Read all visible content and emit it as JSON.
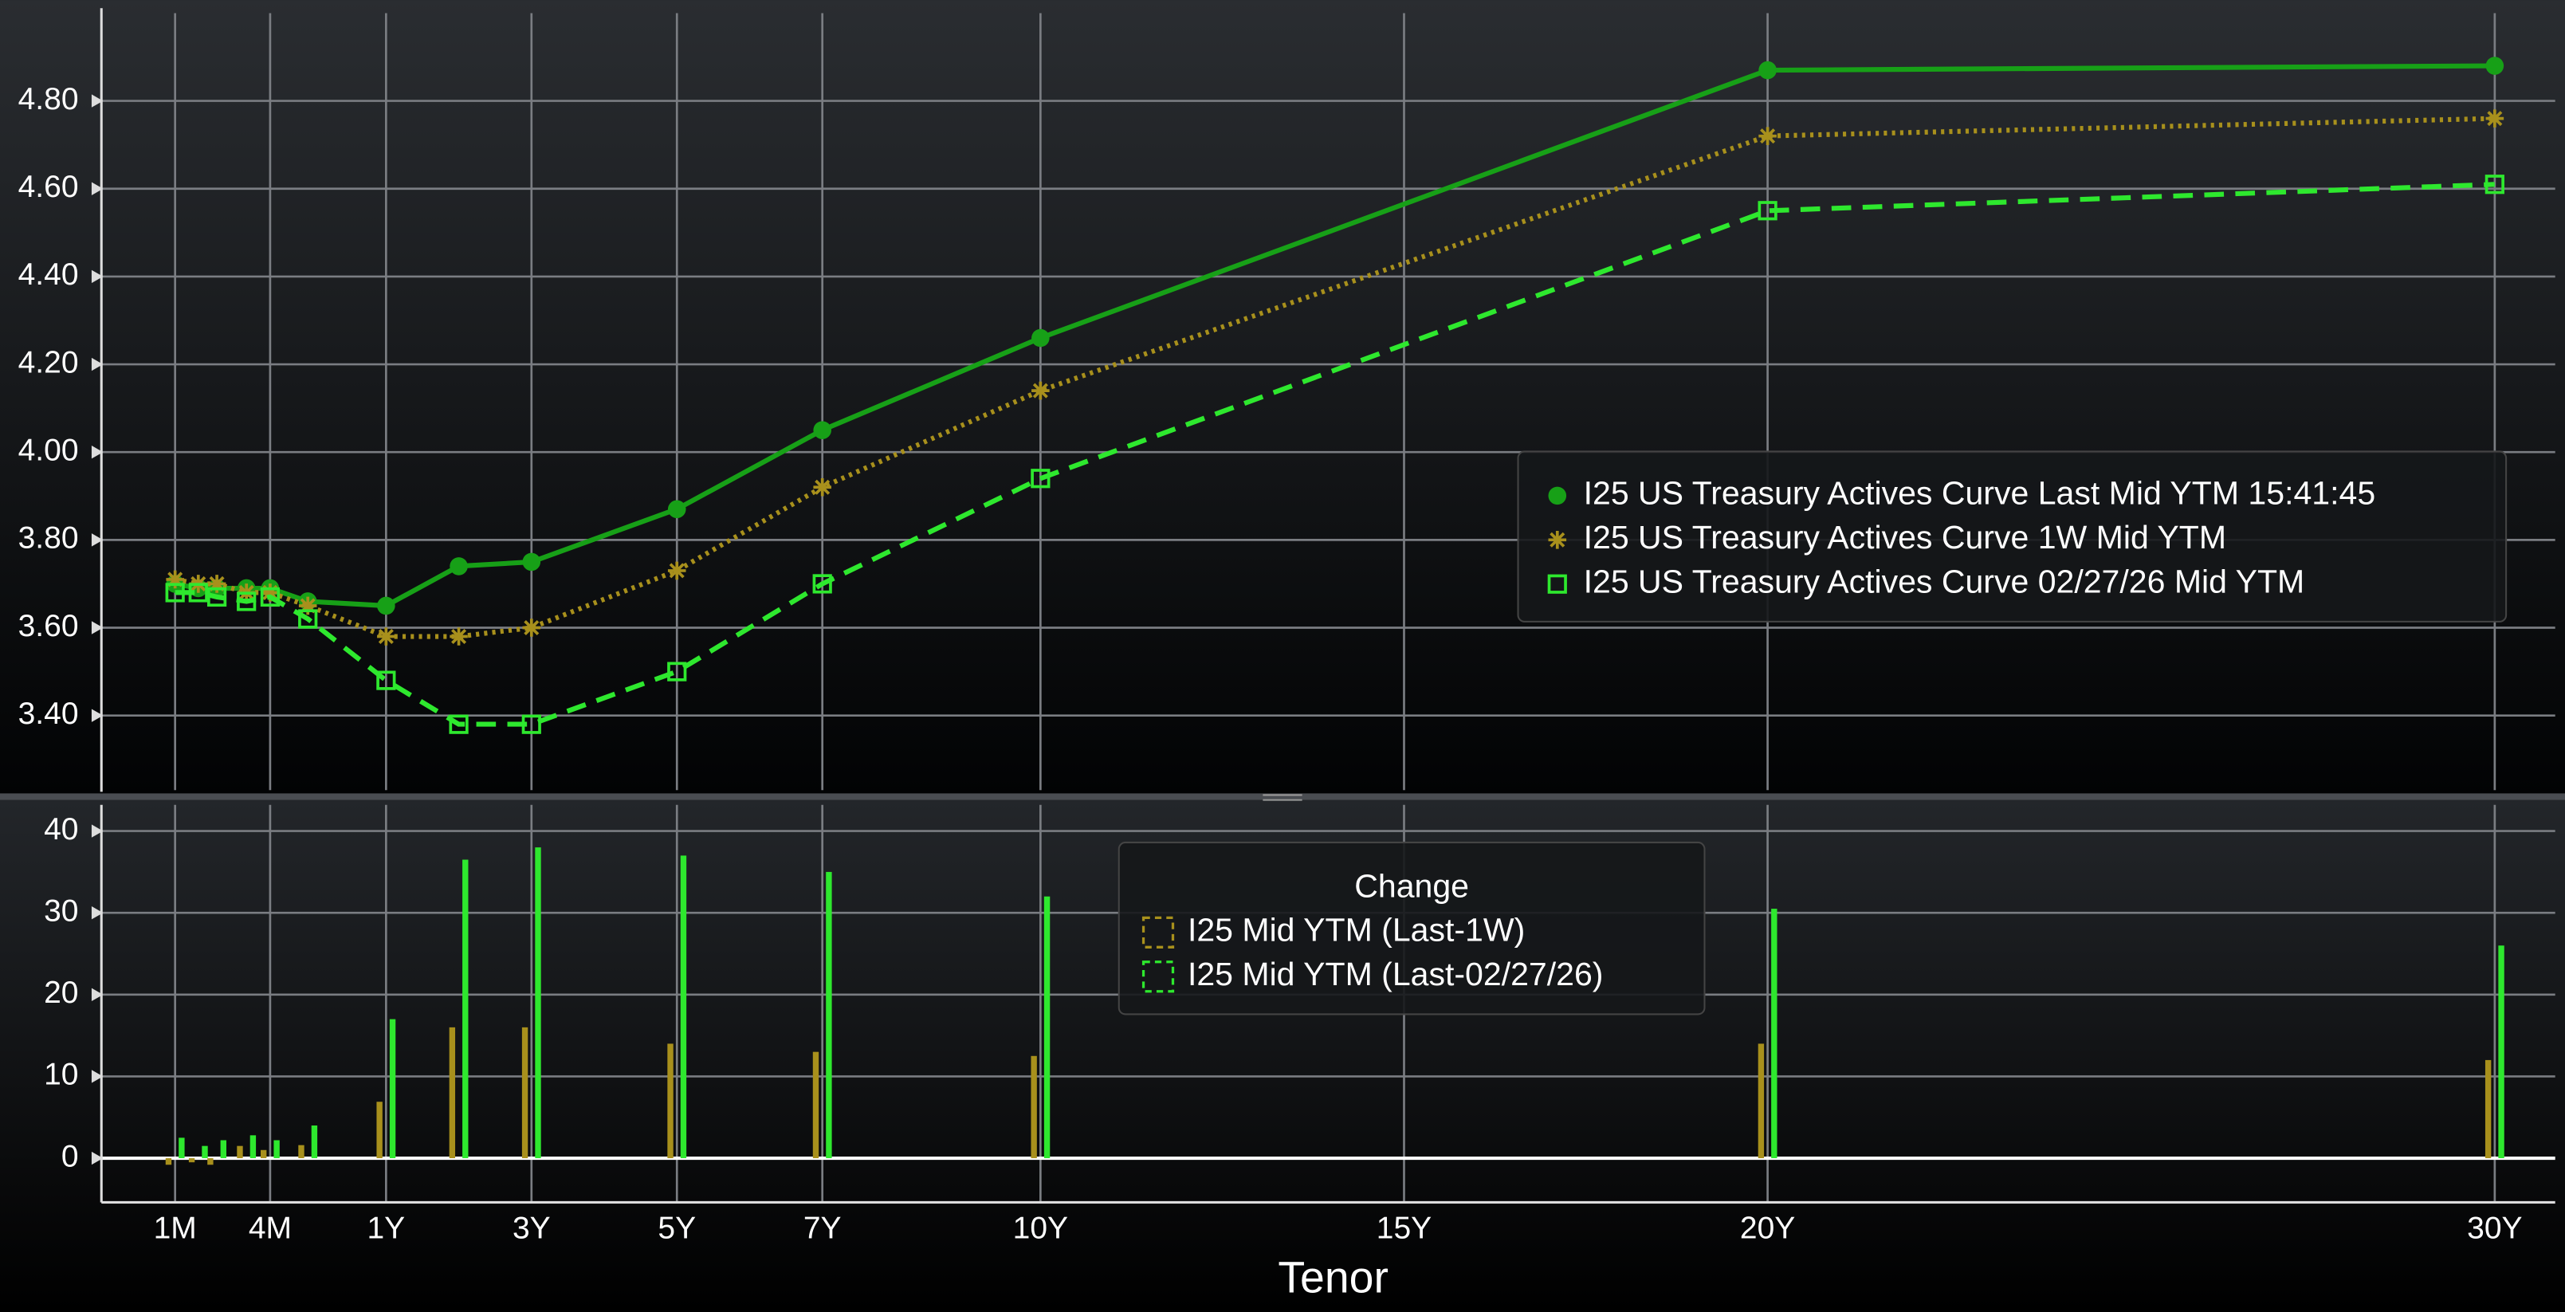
{
  "chart_data": [
    {
      "type": "line",
      "x": [
        1,
        1.5,
        2,
        3,
        4,
        6,
        12,
        24,
        36,
        60,
        84,
        120,
        240,
        360
      ],
      "series": [
        {
          "name": "I25 US Treasury Actives Curve Last Mid YTM 15:41:45",
          "color": "#17a017",
          "marker": "circle",
          "dash": "solid",
          "values": [
            3.7,
            3.69,
            3.69,
            3.69,
            3.69,
            3.66,
            3.65,
            3.74,
            3.75,
            3.87,
            4.05,
            4.26,
            4.87,
            4.88
          ]
        },
        {
          "name": "I25 US Treasury Actives Curve 1W Mid YTM",
          "color": "#a8901c",
          "marker": "star",
          "dash": "dotted",
          "values": [
            3.71,
            3.7,
            3.7,
            3.68,
            3.68,
            3.65,
            3.58,
            3.58,
            3.6,
            3.73,
            3.92,
            4.14,
            4.72,
            4.76
          ]
        },
        {
          "name": "I25 US Treasury Actives Curve 02/27/26 Mid YTM",
          "color": "#2ee82e",
          "marker": "square",
          "dash": "dashed",
          "values": [
            3.68,
            3.68,
            3.67,
            3.66,
            3.67,
            3.62,
            3.48,
            3.38,
            3.38,
            3.5,
            3.7,
            3.94,
            4.55,
            4.61
          ]
        }
      ],
      "ylim": [
        3.23,
        5.0
      ],
      "yticks": [
        {
          "value": 3.4,
          "label": "3.40"
        },
        {
          "value": 3.6,
          "label": "3.60"
        },
        {
          "value": 3.8,
          "label": "3.80"
        },
        {
          "value": 4.0,
          "label": "4.00"
        },
        {
          "value": 4.2,
          "label": "4.20"
        },
        {
          "value": 4.4,
          "label": "4.40"
        },
        {
          "value": 4.6,
          "label": "4.60"
        },
        {
          "value": 4.8,
          "label": "4.80"
        }
      ],
      "grid": true,
      "legend": "right"
    },
    {
      "type": "bar",
      "legend_title": "Change",
      "x": [
        1,
        1.5,
        2,
        3,
        4,
        6,
        12,
        24,
        36,
        60,
        84,
        120,
        240,
        360
      ],
      "series": [
        {
          "name": "I25 Mid YTM (Last-1W)",
          "color": "#a8901c",
          "values": [
            -0.8,
            -0.5,
            -0.8,
            1.5,
            1,
            1.6,
            6.9,
            16,
            16,
            14,
            13,
            12.5,
            14,
            12
          ]
        },
        {
          "name": "I25 Mid YTM (Last-02/27/26)",
          "color": "#2ee82e",
          "values": [
            2.5,
            1.5,
            2.2,
            2.8,
            2.2,
            4,
            17,
            36.5,
            38,
            37,
            35,
            32,
            30.5,
            26
          ]
        }
      ],
      "ylim": [
        -5.4,
        43.2
      ],
      "yticks": [
        0,
        10,
        20,
        30,
        40
      ],
      "xticks": [
        {
          "value": 1,
          "label": "1M"
        },
        {
          "value": 4,
          "label": "4M"
        },
        {
          "value": 12,
          "label": "1Y"
        },
        {
          "value": 36,
          "label": "3Y"
        },
        {
          "value": 60,
          "label": "5Y"
        },
        {
          "value": 84,
          "label": "7Y"
        },
        {
          "value": 120,
          "label": "10Y"
        },
        {
          "value": 180,
          "label": "15Y"
        },
        {
          "value": 240,
          "label": "20Y"
        },
        {
          "value": 360,
          "label": "30Y"
        }
      ],
      "xlabel": "Tenor",
      "grid": true,
      "legend": "top"
    }
  ]
}
